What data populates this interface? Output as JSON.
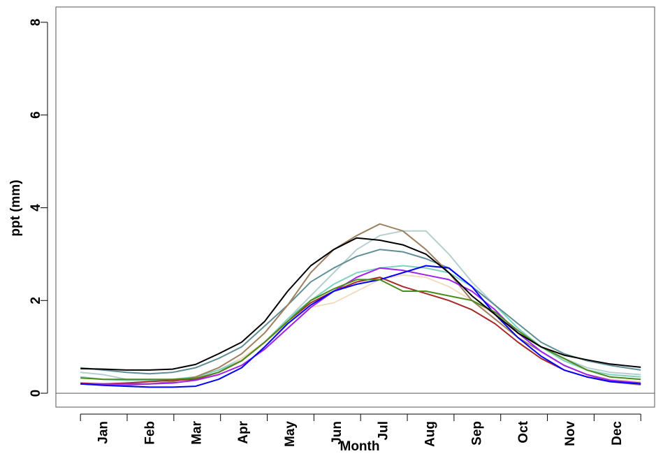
{
  "chart_data": {
    "type": "line",
    "xlabel": "Month",
    "ylabel": "ppt (mm)",
    "categories": [
      "Jan",
      "Feb",
      "Mar",
      "Apr",
      "May",
      "Jun",
      "Jul",
      "Aug",
      "Sep",
      "Oct",
      "Nov",
      "Dec"
    ],
    "x": [
      0,
      15,
      30,
      45,
      60,
      75,
      90,
      105,
      120,
      135,
      150,
      165,
      180,
      195,
      210,
      225,
      240,
      255,
      270,
      285,
      300,
      315,
      330,
      345,
      365
    ],
    "xlim": [
      -16,
      374
    ],
    "ylim": [
      -0.3,
      8.33
    ],
    "yticks": [
      0,
      2,
      4,
      6,
      8
    ],
    "reference_line": 0,
    "series": [
      {
        "color": "#b5cfd0",
        "values": [
          0.45,
          0.4,
          0.3,
          0.28,
          0.3,
          0.35,
          0.5,
          0.75,
          1.1,
          1.6,
          2.1,
          2.6,
          3.1,
          3.4,
          3.5,
          3.5,
          3.0,
          2.4,
          1.9,
          1.4,
          1.0,
          0.75,
          0.55,
          0.45,
          0.4
        ]
      },
      {
        "color": "#f3dcc0",
        "values": [
          0.2,
          0.18,
          0.18,
          0.2,
          0.22,
          0.3,
          0.45,
          0.75,
          1.1,
          1.5,
          1.85,
          1.95,
          2.2,
          2.45,
          2.55,
          2.5,
          2.3,
          2.0,
          1.7,
          1.3,
          0.9,
          0.6,
          0.4,
          0.3,
          0.25
        ]
      },
      {
        "color": "#7fd1c0",
        "values": [
          0.35,
          0.3,
          0.28,
          0.28,
          0.3,
          0.35,
          0.5,
          0.7,
          1.1,
          1.6,
          2.0,
          2.35,
          2.6,
          2.7,
          2.75,
          2.7,
          2.6,
          2.3,
          1.9,
          1.4,
          1.0,
          0.7,
          0.5,
          0.4,
          0.35
        ]
      },
      {
        "color": "#5f8f96",
        "values": [
          0.55,
          0.5,
          0.45,
          0.42,
          0.45,
          0.55,
          0.75,
          1.0,
          1.45,
          1.9,
          2.4,
          2.7,
          2.95,
          3.1,
          3.05,
          2.9,
          2.7,
          2.3,
          1.9,
          1.5,
          1.1,
          0.85,
          0.7,
          0.6,
          0.5
        ]
      },
      {
        "color": "#a08060",
        "values": [
          0.2,
          0.18,
          0.17,
          0.2,
          0.25,
          0.35,
          0.55,
          0.85,
          1.3,
          1.9,
          2.6,
          3.1,
          3.4,
          3.65,
          3.5,
          3.1,
          2.6,
          2.0,
          1.6,
          1.2,
          0.9,
          0.6,
          0.4,
          0.25,
          0.18
        ]
      },
      {
        "color": "#a52a2a",
        "values": [
          0.22,
          0.2,
          0.22,
          0.25,
          0.28,
          0.3,
          0.45,
          0.7,
          1.1,
          1.55,
          1.95,
          2.2,
          2.4,
          2.5,
          2.3,
          2.15,
          2.0,
          1.8,
          1.5,
          1.1,
          0.75,
          0.5,
          0.35,
          0.25,
          0.2
        ]
      },
      {
        "color": "#a020f0",
        "values": [
          0.2,
          0.2,
          0.2,
          0.2,
          0.22,
          0.28,
          0.4,
          0.6,
          0.95,
          1.4,
          1.85,
          2.2,
          2.5,
          2.7,
          2.65,
          2.55,
          2.45,
          2.2,
          1.8,
          1.3,
          0.9,
          0.6,
          0.4,
          0.28,
          0.22
        ]
      },
      {
        "color": "#0000ff",
        "values": [
          0.2,
          0.17,
          0.15,
          0.13,
          0.13,
          0.15,
          0.3,
          0.55,
          1.0,
          1.5,
          1.9,
          2.2,
          2.35,
          2.45,
          2.6,
          2.75,
          2.7,
          2.3,
          1.7,
          1.2,
          0.8,
          0.5,
          0.35,
          0.25,
          0.2
        ]
      },
      {
        "color": "#4b8b1a",
        "values": [
          0.33,
          0.3,
          0.3,
          0.3,
          0.3,
          0.32,
          0.45,
          0.7,
          1.1,
          1.55,
          2.0,
          2.25,
          2.45,
          2.45,
          2.2,
          2.2,
          2.1,
          2.0,
          1.75,
          1.35,
          1.0,
          0.75,
          0.5,
          0.35,
          0.3
        ]
      },
      {
        "color": "#000000",
        "values": [
          0.53,
          0.52,
          0.5,
          0.5,
          0.52,
          0.62,
          0.85,
          1.1,
          1.55,
          2.2,
          2.75,
          3.1,
          3.35,
          3.3,
          3.2,
          3.0,
          2.6,
          2.1,
          1.7,
          1.3,
          1.0,
          0.82,
          0.72,
          0.63,
          0.56
        ]
      }
    ]
  }
}
